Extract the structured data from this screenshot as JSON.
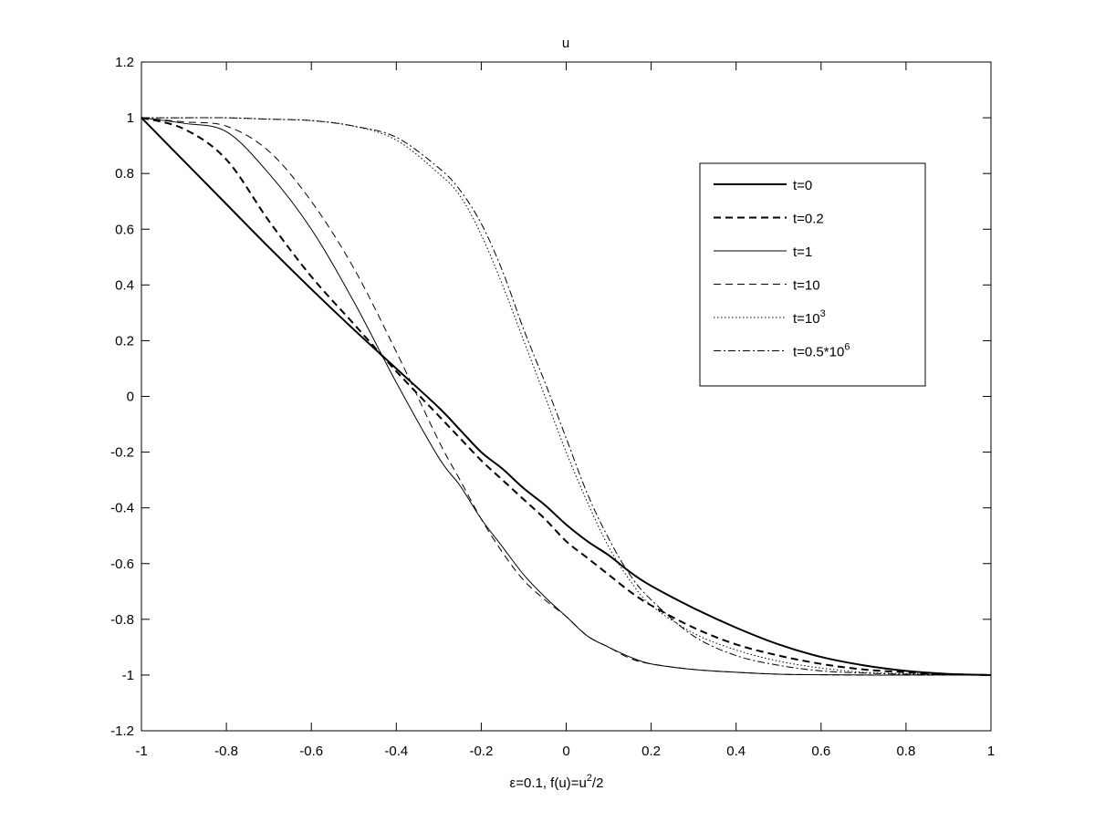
{
  "chart_data": {
    "type": "line",
    "title": "u",
    "xlabel": "ε=0.1, f(u)=u",
    "xlabel_sup": "2",
    "xlabel_tail": "/2",
    "ylabel": "",
    "xlim": [
      -1,
      1
    ],
    "ylim": [
      -1.2,
      1.2
    ],
    "xticks": [
      -1,
      -0.8,
      -0.6,
      -0.4,
      -0.2,
      0,
      0.2,
      0.4,
      0.6,
      0.8,
      1
    ],
    "xtick_labels": [
      "-1",
      "-0.8",
      "-0.6",
      "-0.4",
      "-0.2",
      "0",
      "0.2",
      "0.4",
      "0.6",
      "0.8",
      "1"
    ],
    "yticks": [
      -1.2,
      -1,
      -0.8,
      -0.6,
      -0.4,
      -0.2,
      0,
      0.2,
      0.4,
      0.6,
      0.8,
      1,
      1.2
    ],
    "ytick_labels": [
      "-1.2",
      "-1",
      "-0.8",
      "-0.6",
      "-0.4",
      "-0.2",
      "0",
      "0.2",
      "0.4",
      "0.6",
      "0.8",
      "1",
      "1.2"
    ],
    "grid": false,
    "legend_position": "top-right",
    "x": [
      -1,
      -0.9,
      -0.8,
      -0.7,
      -0.6,
      -0.5,
      -0.4,
      -0.3,
      -0.25,
      -0.2,
      -0.15,
      -0.1,
      -0.05,
      0,
      0.05,
      0.1,
      0.15,
      0.2,
      0.3,
      0.4,
      0.5,
      0.6,
      0.7,
      0.8,
      0.9,
      1
    ],
    "series": [
      {
        "name": "t=0",
        "label_base": "t=0",
        "label_sup": "",
        "dash": "solid",
        "width": 2,
        "values": [
          1,
          0.845,
          0.69,
          0.535,
          0.385,
          0.24,
          0.1,
          -0.04,
          -0.12,
          -0.2,
          -0.26,
          -0.33,
          -0.39,
          -0.46,
          -0.52,
          -0.57,
          -0.63,
          -0.68,
          -0.76,
          -0.83,
          -0.89,
          -0.935,
          -0.965,
          -0.985,
          -0.996,
          -1
        ]
      },
      {
        "name": "t=0.2",
        "label_base": "t=0.2",
        "label_sup": "",
        "dash": "dashed",
        "width": 2,
        "values": [
          1,
          0.96,
          0.85,
          0.63,
          0.43,
          0.26,
          0.09,
          -0.07,
          -0.15,
          -0.23,
          -0.3,
          -0.37,
          -0.44,
          -0.52,
          -0.58,
          -0.64,
          -0.7,
          -0.75,
          -0.83,
          -0.89,
          -0.93,
          -0.96,
          -0.98,
          -0.99,
          -0.997,
          -1
        ]
      },
      {
        "name": "t=1",
        "label_base": "t=1",
        "label_sup": "",
        "dash": "solid",
        "width": 1,
        "values": [
          1,
          0.98,
          0.95,
          0.8,
          0.6,
          0.34,
          0.05,
          -0.22,
          -0.32,
          -0.44,
          -0.54,
          -0.64,
          -0.72,
          -0.79,
          -0.86,
          -0.9,
          -0.935,
          -0.96,
          -0.98,
          -0.99,
          -0.997,
          -0.999,
          -1,
          -1,
          -1,
          -1
        ]
      },
      {
        "name": "t=10",
        "label_base": "t=10",
        "label_sup": "",
        "dash": "dashed",
        "width": 1,
        "values": [
          1,
          0.985,
          0.97,
          0.88,
          0.7,
          0.46,
          0.16,
          -0.16,
          -0.3,
          -0.44,
          -0.56,
          -0.66,
          -0.73,
          -0.79,
          -0.86,
          -0.9,
          -0.94,
          -0.96,
          -0.98,
          -0.99,
          -0.997,
          -0.999,
          -1,
          -1,
          -1,
          -1
        ]
      },
      {
        "name": "t=10^3",
        "label_base": "t=10",
        "label_sup": "3",
        "dash": "dotted",
        "width": 1,
        "values": [
          1,
          1,
          1,
          0.995,
          0.99,
          0.97,
          0.92,
          0.8,
          0.72,
          0.58,
          0.4,
          0.2,
          0.0,
          -0.2,
          -0.38,
          -0.54,
          -0.66,
          -0.75,
          -0.85,
          -0.91,
          -0.95,
          -0.975,
          -0.99,
          -0.995,
          -0.998,
          -1
        ]
      },
      {
        "name": "t=0.5*10^6",
        "label_base": "t=0.5*10",
        "label_sup": "6",
        "dash": "dashdot",
        "width": 1,
        "values": [
          1,
          1,
          1,
          0.995,
          0.99,
          0.97,
          0.93,
          0.82,
          0.74,
          0.62,
          0.45,
          0.24,
          0.05,
          -0.15,
          -0.35,
          -0.51,
          -0.64,
          -0.73,
          -0.86,
          -0.93,
          -0.965,
          -0.985,
          -0.993,
          -0.997,
          -0.999,
          -1
        ]
      }
    ]
  }
}
